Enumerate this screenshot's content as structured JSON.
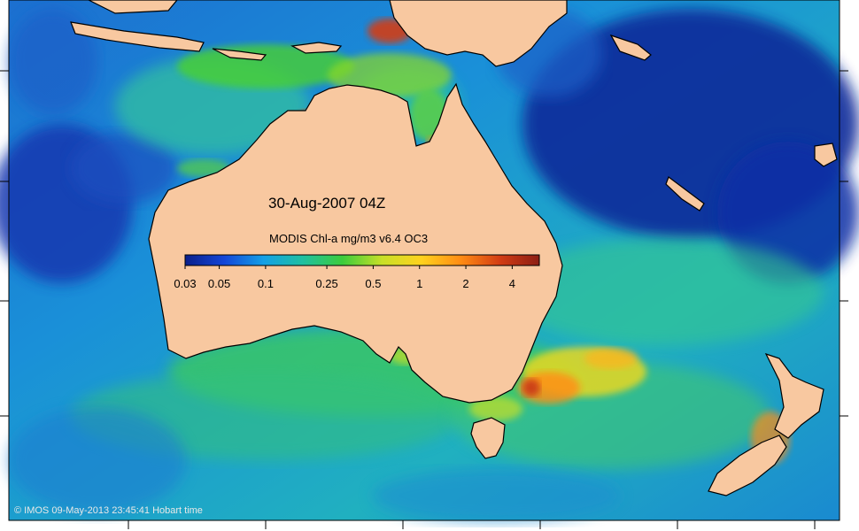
{
  "map": {
    "date_label": "30-Aug-2007 04Z",
    "legend": {
      "title": "MODIS Chl-a mg/m3 v6.4 OC3",
      "scale": "log",
      "range": [
        0.03,
        6
      ],
      "ticks": [
        "0.03",
        "0.05",
        "0.1",
        "0.25",
        "0.5",
        "1",
        "2",
        "4"
      ],
      "colors": [
        "#0a1f8a",
        "#1446d8",
        "#14a0e6",
        "#20c0a0",
        "#3ccc3c",
        "#c8e028",
        "#ffd21e",
        "#ff8c14",
        "#d23c14",
        "#8c1e14"
      ]
    },
    "credit": "© IMOS 09-May-2013 23:45:41 Hobart time",
    "land_color": "#f8c8a0"
  }
}
